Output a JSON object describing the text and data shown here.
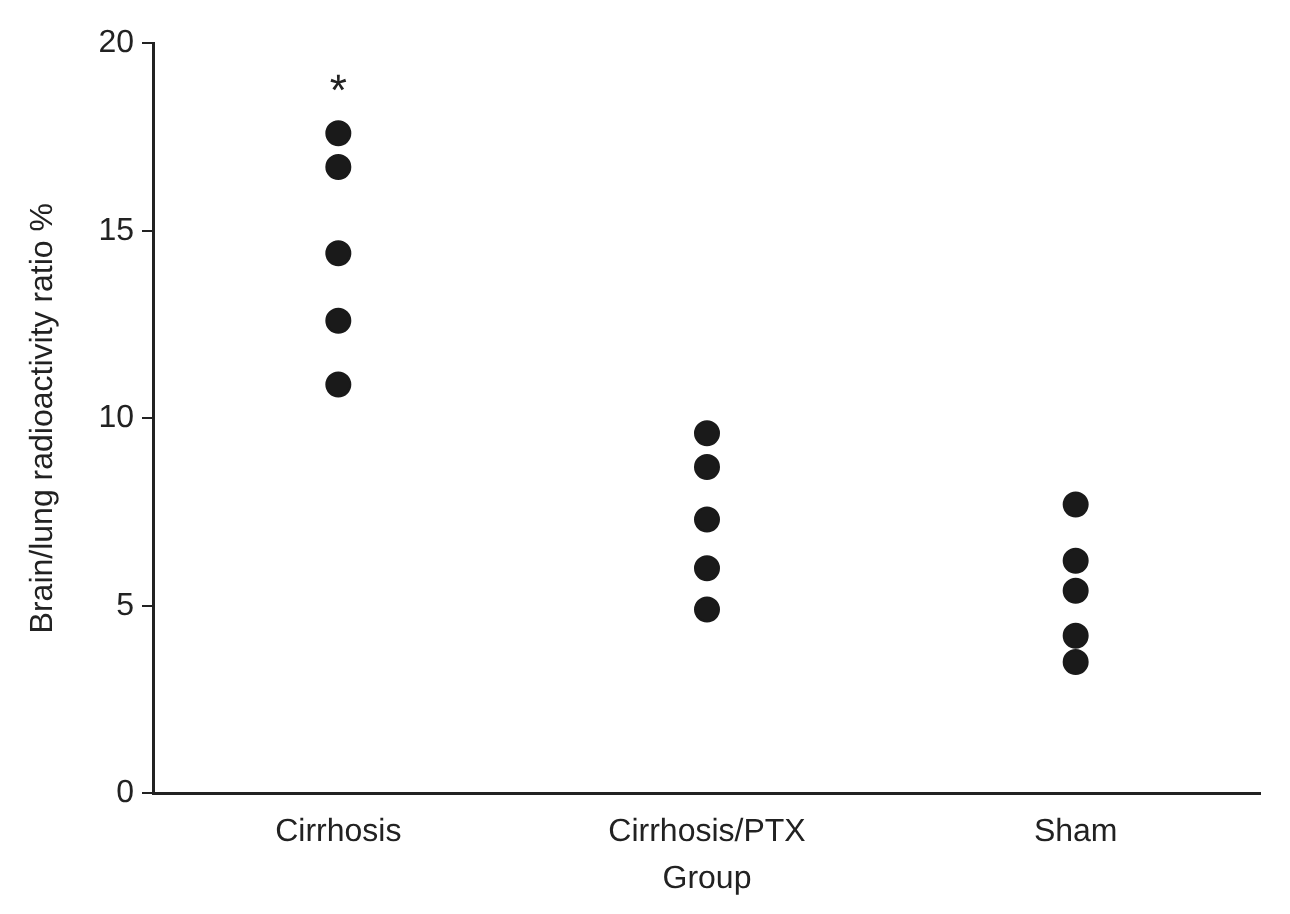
{
  "chart_data": {
    "type": "scatter",
    "xlabel": "Group",
    "ylabel": "Brain/lung radioactivity ratio %",
    "categories": [
      "Cirrhosis",
      "Cirrhosis/PTX",
      "Sham"
    ],
    "series": [
      {
        "color": "#1a1a1a",
        "x": [
          "Cirrhosis",
          "Cirrhosis",
          "Cirrhosis",
          "Cirrhosis",
          "Cirrhosis",
          "Cirrhosis/PTX",
          "Cirrhosis/PTX",
          "Cirrhosis/PTX",
          "Cirrhosis/PTX",
          "Cirrhosis/PTX",
          "Sham",
          "Sham",
          "Sham",
          "Sham",
          "Sham"
        ],
        "values": [
          17.6,
          16.7,
          14.4,
          12.6,
          10.9,
          9.6,
          8.7,
          7.3,
          6.0,
          4.9,
          7.7,
          6.2,
          5.4,
          4.2,
          3.5
        ]
      }
    ],
    "ylim": [
      0,
      20
    ],
    "yticks": [
      0,
      5,
      10,
      15,
      20
    ],
    "grid": false,
    "legend": false,
    "marker": "circle",
    "annotations": [
      "*"
    ]
  }
}
